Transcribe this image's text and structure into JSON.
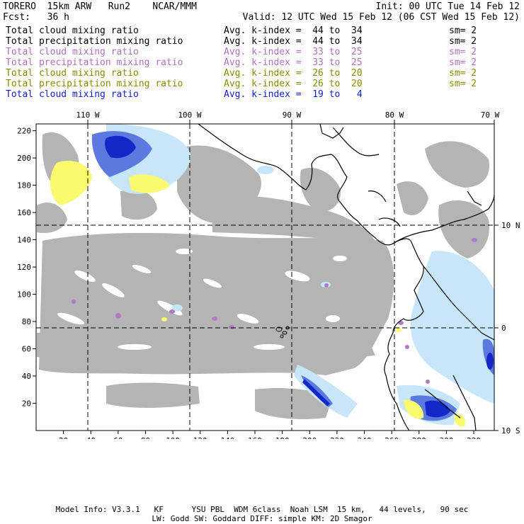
{
  "header": {
    "model": "TORERO  15km ARW   Run2    NCAR/MMM",
    "init": "Init: 00 UTC Tue 14 Feb 12",
    "fcst": "Fcst:   36 h",
    "valid": "Valid: 12 UTC Wed 15 Feb 12 (06 CST Wed 15 Feb 12)"
  },
  "fields": [
    {
      "label": "Total cloud mixing ratio",
      "index": "Avg. k-index =  44 to  34",
      "sm": "sm= 2",
      "color": "#000000"
    },
    {
      "label": "Total precipitation mixing ratio",
      "index": "Avg. k-index =  44 to  34",
      "sm": "sm= 2",
      "color": "#000000"
    },
    {
      "label": "Total cloud mixing ratio",
      "index": "Avg. k-index =  33 to  25",
      "sm": "sm= 2",
      "color": "#b070c0"
    },
    {
      "label": "Total precipitation mixing ratio",
      "index": "Avg. k-index =  33 to  25",
      "sm": "sm= 2",
      "color": "#b070c0"
    },
    {
      "label": "Total cloud mixing ratio",
      "index": "Avg. k-index =  26 to  20",
      "sm": "sm= 2",
      "color": "#8a8a00"
    },
    {
      "label": "Total precipitation mixing ratio",
      "index": "Avg. k-index =  26 to  20",
      "sm": "sm= 2",
      "color": "#8a8a00"
    },
    {
      "label": "Total cloud mixing ratio",
      "index": "Avg. k-index =  19 to   4",
      "sm": "",
      "color": "#1020d0"
    }
  ],
  "map": {
    "lon_labels": [
      "110 W",
      "100 W",
      "90 W",
      "80 W",
      "70 W"
    ],
    "lat_labels": [
      "10 N",
      "0",
      "10 S"
    ],
    "x_ticks": [
      "20",
      "40",
      "60",
      "80",
      "100",
      "120",
      "140",
      "160",
      "180",
      "200",
      "220",
      "240",
      "260",
      "280",
      "300",
      "320"
    ],
    "y_ticks": [
      "20",
      "40",
      "60",
      "80",
      "100",
      "120",
      "140",
      "160",
      "180",
      "200",
      "220"
    ],
    "colors": {
      "gray": "#b4b4b4",
      "lightblue": "#c8e6fa",
      "blue": "#5a7ae0",
      "darkblue": "#1428c8",
      "yellow": "#fafa6e",
      "purple": "#b478c8"
    }
  },
  "footer": {
    "line1": "Model Info: V3.3.1   KF      YSU PBL  WDM 6class  Noah LSM  15 km,   44 levels,   90 sec",
    "line2": "LW: Godd SW: Goddard DIFF: simple KM: 2D Smagor"
  }
}
